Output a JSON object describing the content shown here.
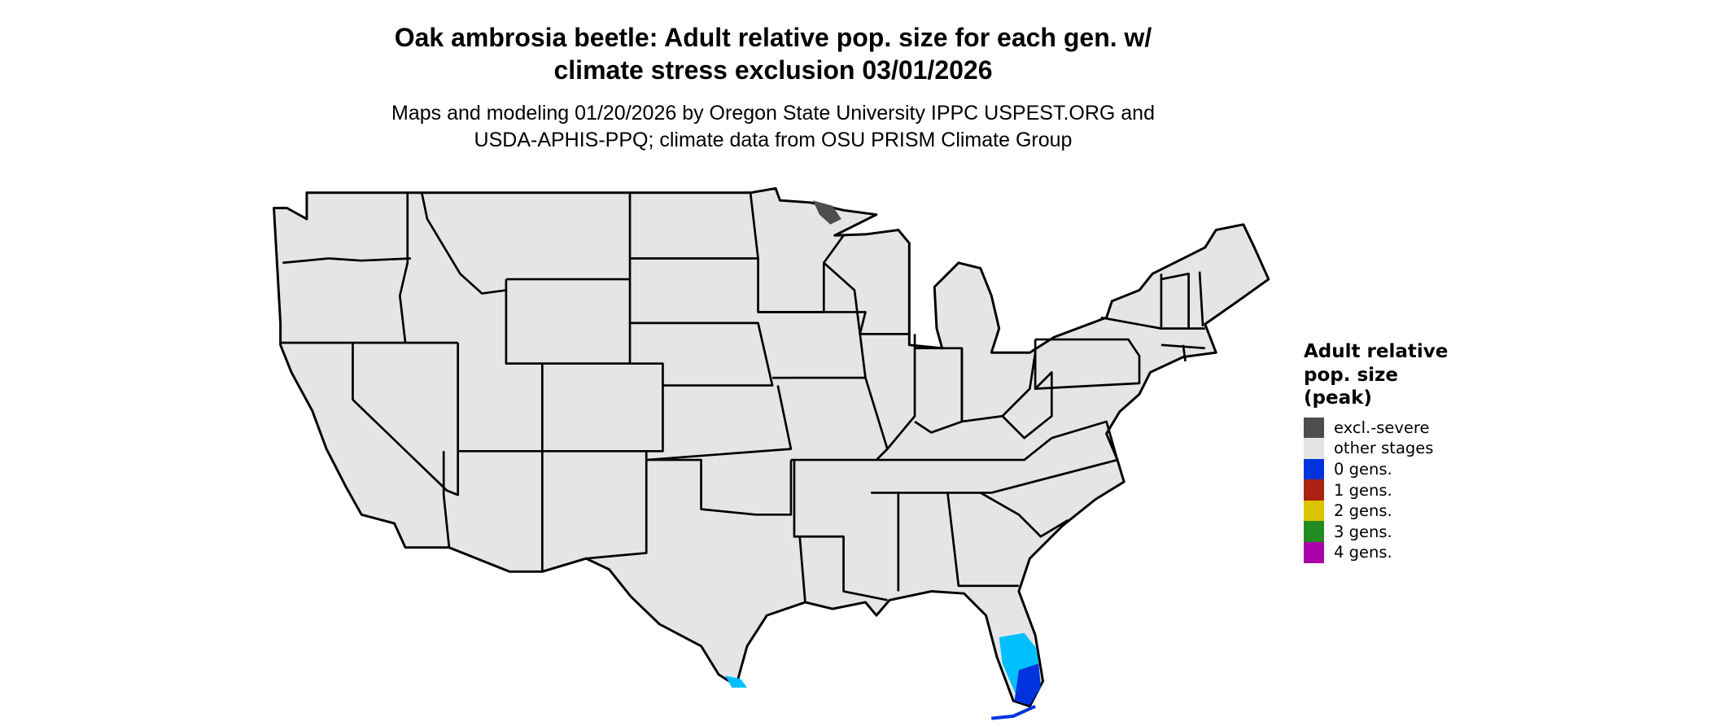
{
  "title": {
    "line1": "Oak ambrosia beetle: Adult relative pop. size for each gen. w/",
    "line2": "climate stress exclusion 03/01/2026"
  },
  "subtitle": {
    "line1": "Maps and modeling 01/20/2026 by Oregon State University IPPC USPEST.ORG and",
    "line2": "USDA-APHIS-PPQ; climate data from OSU PRISM Climate Group"
  },
  "legend": {
    "title_lines": [
      "Adult relative",
      "pop. size",
      "(peak)"
    ],
    "items": [
      {
        "label": "excl.-severe",
        "color": "#4d4d4d"
      },
      {
        "label": "other stages",
        "color": "#e5e5e5"
      },
      {
        "label": "0 gens.",
        "color": "#0033dd"
      },
      {
        "label": "1 gens.",
        "color": "#aa2211"
      },
      {
        "label": "2 gens.",
        "color": "#ddc400"
      },
      {
        "label": "3 gens.",
        "color": "#228b22"
      },
      {
        "label": "4 gens.",
        "color": "#aa00aa"
      }
    ]
  },
  "map_colors": {
    "land": "#e5e5e5",
    "border": "#000000",
    "excluded": "#4d4d4d",
    "light_blue_region": "#00bfff",
    "dark_blue_region": "#0033dd"
  }
}
